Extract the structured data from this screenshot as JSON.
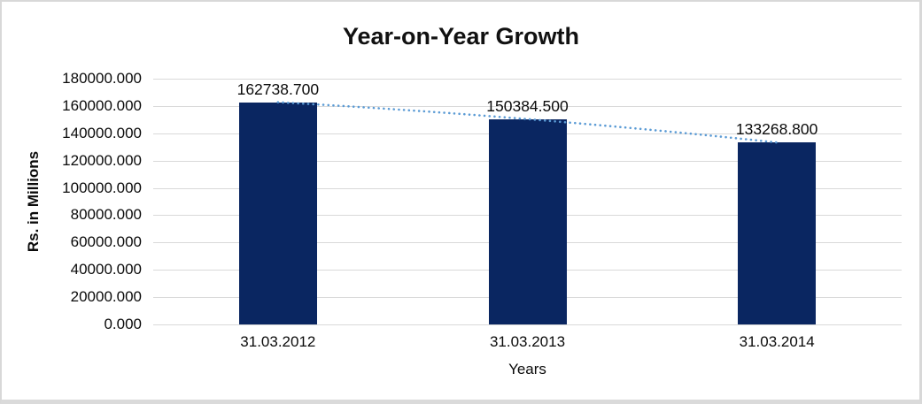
{
  "chart_data": {
    "type": "bar",
    "title": "Year-on-Year Growth",
    "xlabel": "Years",
    "ylabel": "Rs. in Millions",
    "categories": [
      "31.03.2012",
      "31.03.2013",
      "31.03.2014"
    ],
    "values": [
      162738.7,
      150384.5,
      133268.8
    ],
    "data_label_decimals": 3,
    "ylim": [
      0,
      180000
    ],
    "y_tick_step": 20000,
    "y_tick_decimals": 3,
    "grid": true,
    "legend": "none",
    "bar_color": "#0a2661",
    "trendline_color": "#5b9bd5",
    "gridline_color": "#d9d9d9",
    "text_color": "#000000"
  }
}
